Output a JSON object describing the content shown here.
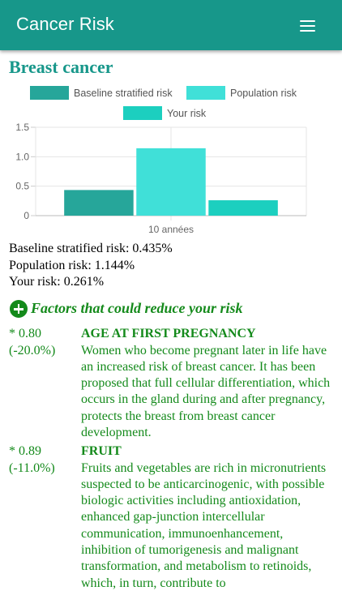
{
  "app": {
    "title": "Cancer Risk",
    "menu_icon": "hamburger-menu-icon"
  },
  "section": {
    "title": "Breast cancer"
  },
  "chart_data": {
    "type": "bar",
    "categories": [
      "10 années"
    ],
    "series": [
      {
        "name": "Baseline stratified risk",
        "values": [
          0.435
        ],
        "color": "#26a69a"
      },
      {
        "name": "Population risk",
        "values": [
          1.144
        ],
        "color": "#40e0d8"
      },
      {
        "name": "Your risk",
        "values": [
          0.261
        ],
        "color": "#1ccfbf"
      }
    ],
    "ylim": [
      0,
      1.5
    ],
    "yticks": [
      "0",
      "0.5",
      "1.0",
      "1.5"
    ],
    "grid": true,
    "legend": "top"
  },
  "risks": [
    {
      "label": "Baseline stratified risk:",
      "value": "0.435%"
    },
    {
      "label": "Population risk:",
      "value": "1.144%"
    },
    {
      "label": "Your risk:",
      "value": "0.261%"
    }
  ],
  "factors": {
    "title": "Factors that could reduce your risk",
    "icon": "plus-circle-icon",
    "items": [
      {
        "value": "* 0.80",
        "change": "(-20.0%)",
        "name": "AGE AT FIRST PREGNANCY",
        "description": "Women who become pregnant later in life have an increased risk of breast cancer. It has been proposed that full cellular differentiation, which occurs in the gland during and after pregnancy, protects the breast from breast cancer development."
      },
      {
        "value": "* 0.89",
        "change": "(-11.0%)",
        "name": "FRUIT",
        "description": "Fruits and vegetables are rich in micronutrients suspected to be anticarcinogenic, with possible biologic activities including antioxidation, enhanced gap-junction intercellular communication, immunoenhancement, inhibition of tumorigenesis and malignant transformation, and metabolism to retinoids, which, in turn, contribute to"
      }
    ]
  }
}
